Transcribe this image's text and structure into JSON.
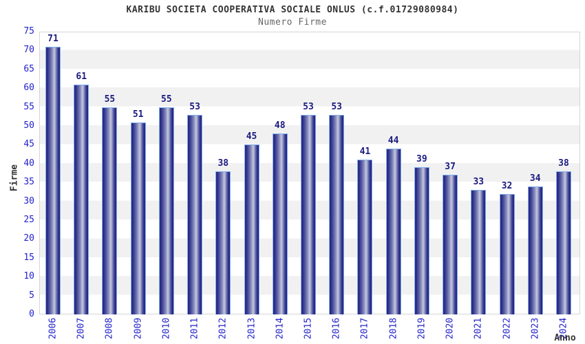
{
  "chart_data": {
    "type": "bar",
    "title": "KARIBU SOCIETA COOPERATIVA SOCIALE ONLUS (c.f.01729080984)",
    "subtitle": "Numero Firme",
    "xlabel": "Anno",
    "ylabel": "Firme",
    "categories": [
      "2006",
      "2007",
      "2008",
      "2009",
      "2010",
      "2011",
      "2012",
      "2013",
      "2014",
      "2015",
      "2016",
      "2017",
      "2018",
      "2019",
      "2020",
      "2021",
      "2022",
      "2023",
      "2024"
    ],
    "values": [
      71,
      61,
      55,
      51,
      55,
      53,
      38,
      45,
      48,
      53,
      53,
      41,
      44,
      39,
      37,
      33,
      32,
      34,
      38
    ],
    "ylim": [
      0,
      75
    ],
    "ytick_step": 5,
    "yticks": [
      0,
      5,
      10,
      15,
      20,
      25,
      30,
      35,
      40,
      45,
      50,
      55,
      60,
      65,
      70,
      75
    ],
    "grid": "horizontal-bands",
    "legend": "none",
    "colors": {
      "title_color": "#333333",
      "subtitle_color": "#666666",
      "tick_label": "#2222cc",
      "value_label": "#1a1a80",
      "axis_title": "#333333",
      "bar_dark": "#23237a",
      "bar_highlight": "#c3c7de",
      "bar_border": "#7fb0ee",
      "band_gray": "#f1f1f1",
      "band_white": "#ffffff",
      "plot_border": "#d5d5d5"
    }
  }
}
